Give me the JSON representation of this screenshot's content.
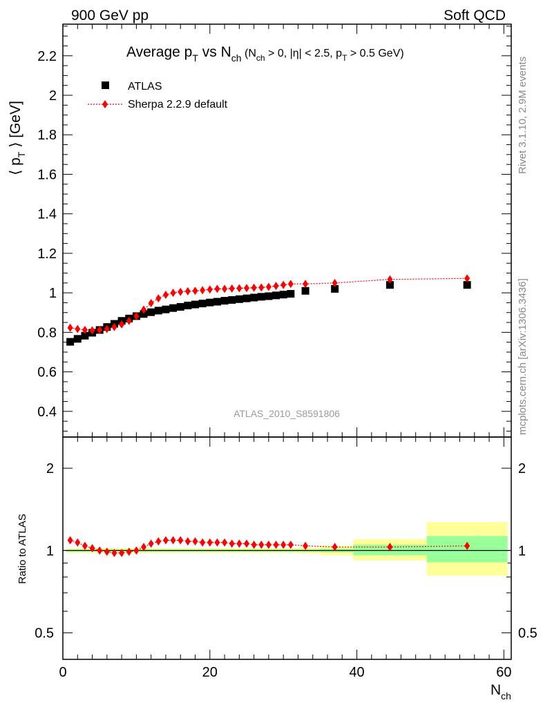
{
  "header": {
    "left": "900 GeV pp",
    "right": "Soft QCD"
  },
  "side": {
    "rivet": "Rivet 3.1.10,  2.9M events",
    "mcplots": "mcplots.cern.ch [arXiv:1306.3436]"
  },
  "chart_data": {
    "type": "scatter",
    "title": "Average pT vs Nch (Nch > 0, |η| < 2.5, pT > 0.5 GeV)",
    "title_parts": {
      "a": "Average p",
      "a_sub": "T",
      "b": " vs N",
      "b_sub": "ch",
      "c": " (N",
      "c_sub": "ch",
      "d": " > 0, |η| < 2.5, p",
      "d_sub": "T",
      "e": " > 0.5 GeV)"
    },
    "ylabel": "⟨ pT ⟩ [GeV]",
    "ylabel_parts": {
      "a": "⟨ p",
      "sub": "T",
      "b": " ⟩ [GeV]"
    },
    "xlabel": "Nch",
    "xlabel_parts": {
      "main": "N",
      "sub": "ch"
    },
    "ratio_ylabel": "Ratio to ATLAS",
    "watermark": "ATLAS_2010_S8591806",
    "xlim": [
      0,
      61
    ],
    "ylim": [
      0.27,
      2.36
    ],
    "ratio_ylim": [
      0.4,
      2.6
    ],
    "ratio_log": true,
    "xticks": [
      0,
      20,
      40,
      60
    ],
    "xtick_labels": [
      "0",
      "20",
      "40",
      "60"
    ],
    "yticks": [
      0.4,
      0.6,
      0.8,
      1,
      1.2,
      1.4,
      1.6,
      1.8,
      2,
      2.2
    ],
    "ytick_labels": [
      "0.4",
      "0.6",
      "0.8",
      "1",
      "1.2",
      "1.4",
      "1.6",
      "1.8",
      "2",
      "2.2"
    ],
    "ratio_yticks": [
      0.5,
      1,
      2
    ],
    "ratio_ytick_labels": [
      "0.5",
      "1",
      "2"
    ],
    "legend": [
      "ATLAS",
      "Sherpa 2.2.9 default"
    ],
    "legend_position": "top-left",
    "colors": {
      "atlas": "#000000",
      "sherpa": "#ff0000",
      "band_inner": "#99ff99",
      "band_outer": "#ffff99"
    },
    "series": [
      {
        "name": "ATLAS",
        "marker": "square",
        "x": [
          1,
          2,
          3,
          4,
          5,
          6,
          7,
          8,
          9,
          10,
          11,
          12,
          13,
          14,
          15,
          16,
          17,
          18,
          19,
          20,
          21,
          22,
          23,
          24,
          25,
          26,
          27,
          28,
          29,
          30,
          31,
          33,
          37,
          44.5,
          55
        ],
        "y": [
          0.752,
          0.767,
          0.783,
          0.798,
          0.812,
          0.827,
          0.843,
          0.858,
          0.87,
          0.882,
          0.893,
          0.902,
          0.91,
          0.916,
          0.923,
          0.929,
          0.936,
          0.941,
          0.946,
          0.951,
          0.955,
          0.96,
          0.964,
          0.968,
          0.972,
          0.976,
          0.98,
          0.983,
          0.987,
          0.991,
          0.995,
          1.01,
          1.02,
          1.04,
          1.04
        ]
      },
      {
        "name": "Sherpa 2.2.9 default",
        "marker": "diamond",
        "x": [
          1,
          2,
          3,
          4,
          5,
          6,
          7,
          8,
          9,
          10,
          11,
          12,
          13,
          14,
          15,
          16,
          17,
          18,
          19,
          20,
          21,
          22,
          23,
          24,
          25,
          26,
          27,
          28,
          29,
          30,
          31,
          33,
          37,
          44.5,
          55
        ],
        "y": [
          0.823,
          0.817,
          0.812,
          0.81,
          0.812,
          0.817,
          0.827,
          0.84,
          0.858,
          0.882,
          0.915,
          0.948,
          0.972,
          0.99,
          1.0,
          1.005,
          1.008,
          1.01,
          1.013,
          1.017,
          1.02,
          1.02,
          1.022,
          1.023,
          1.024,
          1.026,
          1.027,
          1.03,
          1.035,
          1.04,
          1.045,
          1.045,
          1.05,
          1.068,
          1.073
        ]
      }
    ],
    "ratio_series": {
      "name": "Sherpa 2.2.9 default",
      "x": [
        1,
        2,
        3,
        4,
        5,
        6,
        7,
        8,
        9,
        10,
        11,
        12,
        13,
        14,
        15,
        16,
        17,
        18,
        19,
        20,
        21,
        22,
        23,
        24,
        25,
        26,
        27,
        28,
        29,
        30,
        31,
        33,
        37,
        44.5,
        55
      ],
      "y": [
        1.09,
        1.07,
        1.04,
        1.02,
        1.0,
        0.99,
        0.98,
        0.98,
        0.99,
        1.0,
        1.03,
        1.06,
        1.08,
        1.09,
        1.09,
        1.09,
        1.08,
        1.08,
        1.07,
        1.07,
        1.07,
        1.07,
        1.06,
        1.06,
        1.06,
        1.05,
        1.05,
        1.05,
        1.05,
        1.05,
        1.05,
        1.04,
        1.03,
        1.03,
        1.04
      ]
    },
    "ratio_bands": [
      {
        "x0": 0.5,
        "x1": 32,
        "inner": [
          0.99,
          1.01
        ],
        "outer": [
          0.98,
          1.02
        ]
      },
      {
        "x0": 32,
        "x1": 35,
        "inner": [
          0.99,
          1.01
        ],
        "outer": [
          0.975,
          1.025
        ]
      },
      {
        "x0": 35,
        "x1": 39.5,
        "inner": [
          0.985,
          1.015
        ],
        "outer": [
          0.96,
          1.04
        ]
      },
      {
        "x0": 39.5,
        "x1": 49.5,
        "inner": [
          0.96,
          1.05
        ],
        "outer": [
          0.92,
          1.1
        ]
      },
      {
        "x0": 49.5,
        "x1": 60.5,
        "inner": [
          0.905,
          1.13
        ],
        "outer": [
          0.81,
          1.27
        ]
      }
    ]
  }
}
